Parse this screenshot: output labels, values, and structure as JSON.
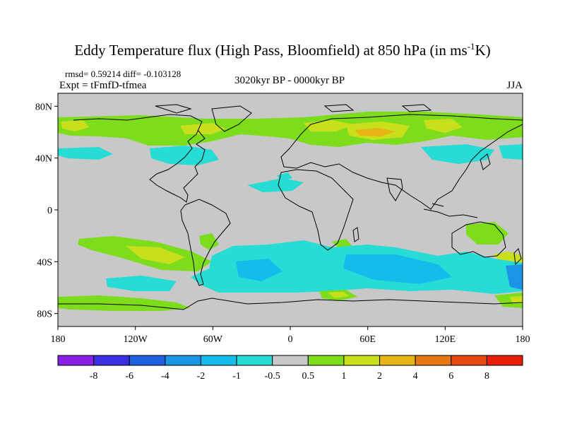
{
  "title_main": "Eddy Temperature flux (High Pass, Bloomfield) at 850 hPa (in ms",
  "title_sup": "-1",
  "title_end": "K)",
  "stats": "rmsd= 0.59214  diff= -0.103128",
  "expt": "Expt = tFmfD-tfmea",
  "period": "3020kyr BP - 0000kyr BP",
  "season": "JJA",
  "axes": {
    "lat_labels": [
      "80N",
      "40N",
      "0",
      "40S",
      "80S"
    ],
    "lon_labels": [
      "180",
      "120W",
      "60W",
      "0",
      "60E",
      "120E",
      "180"
    ]
  },
  "colorbar": {
    "labels": [
      "-8",
      "-6",
      "-4",
      "-2",
      "-1",
      "-0.5",
      "0.5",
      "1",
      "2",
      "4",
      "6",
      "8"
    ],
    "colors": [
      "#8a1fe6",
      "#3a2ee0",
      "#1e60e0",
      "#1a95e6",
      "#14bcec",
      "#28dcd6",
      "#c8c8c8",
      "#7ddc1c",
      "#c8e01c",
      "#e6b414",
      "#e67814",
      "#e64a14",
      "#e61e0a"
    ]
  },
  "fill_colors": {
    "ocean_land_background": "#c8c8c8",
    "positive_low": "#7ddc1c",
    "positive_mid": "#c8e01c",
    "positive_high": "#e6b414",
    "negative_low": "#28dcd6",
    "negative_mid": "#14bcec",
    "negative_high": "#1a95e6"
  }
}
